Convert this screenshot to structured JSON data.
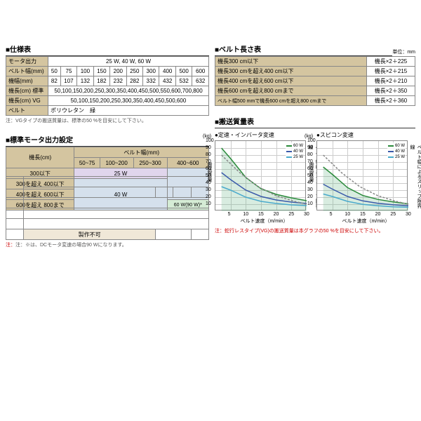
{
  "spec": {
    "title": "■仕様表",
    "rows": [
      {
        "label": "モータ出力",
        "cells": [
          "25 W, 40 W, 60 W"
        ],
        "span": 10
      },
      {
        "label": "ベルト幅(mm)",
        "cells": [
          "50",
          "75",
          "100",
          "150",
          "200",
          "250",
          "300",
          "400",
          "500",
          "600"
        ]
      },
      {
        "label": "機幅(mm)",
        "cells": [
          "82",
          "107",
          "132",
          "182",
          "232",
          "282",
          "332",
          "432",
          "532",
          "632"
        ]
      },
      {
        "label": "機長(cm) 標準",
        "cells": [
          "50,100,150,200,250,300,350,400,450,500,550,600,700,800"
        ],
        "span": 10
      },
      {
        "label": "機長(cm) VG",
        "cells": [
          "50,100,150,200,250,300,350,400,450,500,600"
        ],
        "span": 10
      },
      {
        "label": "ベルト",
        "cells": [
          "ポリウレタン　緑"
        ],
        "span": 10
      }
    ],
    "note": "注：VGタイプの搬送質量は、標準の50 %を目安にして下さい。"
  },
  "motor": {
    "title": "■標準モータ出力設定",
    "col_header": "ベルト幅(mm)",
    "row_header": "機長(cm)",
    "cols": [
      "50~75",
      "100~200",
      "250~300",
      "400~600"
    ],
    "rows": [
      "300以下",
      "300を超え 400以下",
      "400を超え 600以下",
      "600を超え 800まで"
    ],
    "v25": "25 W",
    "v40": "40 W",
    "v60": "60 W(90 W)*",
    "vx": "製作不可",
    "note": "注：※は、DCモータ変速の場合90 Wになります。"
  },
  "belt_len": {
    "title": "■ベルト長さ表",
    "unit": "単位：mm",
    "rows": [
      [
        "機長300 cm以下",
        "機長×2＋225"
      ],
      [
        "機長300 cmを超え400 cm以下",
        "機長×2＋215"
      ],
      [
        "機長400 cmを超え600 cm以下",
        "機長×2＋210"
      ],
      [
        "機長600 cmを超え800 cmまで",
        "機長×2＋350"
      ],
      [
        "ベルト幅500 mmで機長600 cmを超え800 cmまで",
        "機長×2＋360"
      ]
    ]
  },
  "charts": {
    "title": "■搬送質量表",
    "chart1": {
      "title": "●定速・インバータ変速"
    },
    "chart2": {
      "title": "●スピコン変速"
    },
    "xlabel": "ベルト速度（m/min）",
    "ylabel": "搬送質量",
    "ylabel_unit": "(kg)",
    "ylabel_r": "ベルト幅によるスリップ限界線",
    "xticks": [
      "5",
      "10",
      "15",
      "20",
      "25",
      "30"
    ],
    "yticks": [
      "10",
      "20",
      "30",
      "40",
      "50",
      "60",
      "70",
      "80",
      "90",
      "100"
    ],
    "colors": {
      "w60": "#2a8a3a",
      "w40": "#3a5aaa",
      "w25": "#4aaacc",
      "slip": "#888"
    },
    "legend": [
      [
        "60 W",
        "#2a8a3a"
      ],
      [
        "40 W",
        "#3a5aaa"
      ],
      [
        "25 W",
        "#4aaacc"
      ]
    ],
    "note": "注：蛇行レスタイプ(VG)の搬送質量は本グラフの50 %を目安にして下さい。"
  }
}
